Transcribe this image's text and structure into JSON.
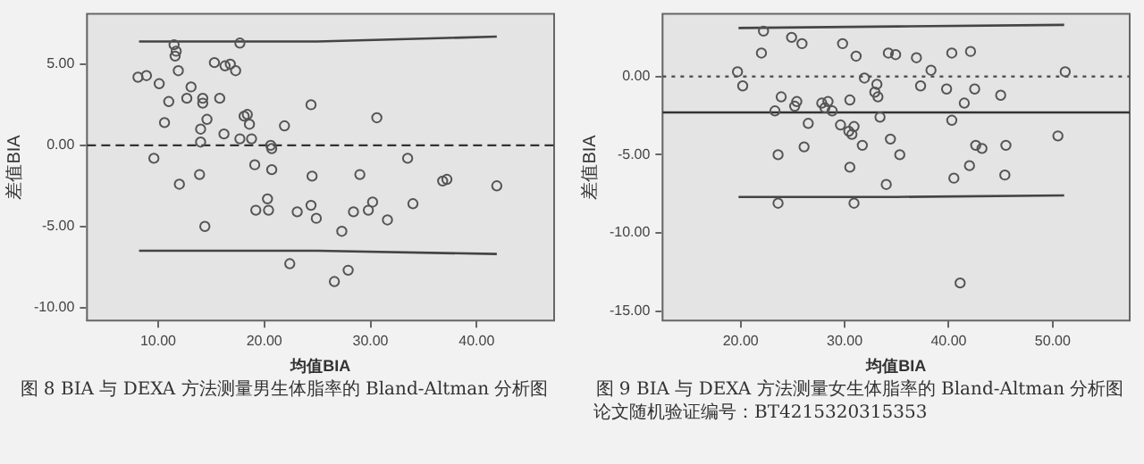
{
  "chart_data": [
    {
      "type": "scatter",
      "title": "图 8 BIA 与 DEXA 方法测量男生体脂率的 Bland-Altman 分析图",
      "xlabel": "均值BIA",
      "ylabel": "差值BIA",
      "marker": "circle",
      "xlim": [
        3.3,
        47.3
      ],
      "xticks": [
        {
          "value": 10,
          "label": "10.00"
        },
        {
          "value": 20,
          "label": "20.00"
        },
        {
          "value": 30,
          "label": "30.00"
        },
        {
          "value": 40,
          "label": "40.00"
        }
      ],
      "ylim": [
        -10.8,
        8.1
      ],
      "yticks": [
        {
          "value": 5,
          "label": "5.00"
        },
        {
          "value": 0,
          "label": "0.00"
        },
        {
          "value": -5,
          "label": "-5.00"
        },
        {
          "value": -10,
          "label": "-10.00"
        }
      ],
      "ref_lines": [
        {
          "axis": "y",
          "value": 0,
          "color": "#333333",
          "line_style": "dashed"
        }
      ],
      "series": [
        {
          "color": "#555555",
          "x": [
            11.5,
            17.7,
            11.7,
            11.6,
            11.9,
            8.1,
            8.9,
            10.1,
            15.3,
            16.3,
            16.8,
            17.3,
            13.1,
            11.0,
            12.7,
            14.2,
            14.2,
            15.8,
            24.4,
            30.6,
            18.1,
            18.4,
            14.6,
            10.6,
            14.0,
            18.6,
            21.9,
            16.2,
            17.7,
            18.8,
            14.0,
            20.6,
            20.7,
            9.6,
            33.5,
            19.1,
            20.7,
            13.9,
            24.5,
            29.0,
            12.0,
            36.8,
            37.2,
            41.9,
            20.3,
            29.8,
            34.0,
            19.2,
            20.4,
            23.1,
            24.4,
            24.9,
            28.4,
            30.2,
            31.6,
            14.4,
            27.3,
            22.4,
            27.9,
            26.6
          ],
          "values": [
            6.2,
            6.3,
            5.8,
            5.5,
            4.6,
            4.2,
            4.3,
            3.8,
            5.1,
            4.9,
            5.0,
            4.6,
            3.6,
            2.7,
            2.9,
            2.9,
            2.6,
            2.9,
            2.5,
            1.7,
            1.8,
            1.9,
            1.6,
            1.4,
            1.0,
            1.3,
            1.2,
            0.7,
            0.4,
            0.4,
            0.2,
            0.0,
            -0.2,
            -0.8,
            -0.8,
            -1.2,
            -1.5,
            -1.8,
            -1.9,
            -1.8,
            -2.4,
            -2.2,
            -2.1,
            -2.5,
            -3.3,
            -4.0,
            -3.6,
            -4.0,
            -4.0,
            -4.1,
            -3.7,
            -4.5,
            -4.1,
            -3.5,
            -4.6,
            -5.0,
            -5.3,
            -7.3,
            -7.7,
            -8.4
          ]
        },
        {
          "type": "line",
          "marker": "none",
          "color": "#444444",
          "x": [
            8.2,
            25,
            41.9
          ],
          "values": [
            6.4,
            6.4,
            6.7
          ]
        },
        {
          "type": "line",
          "marker": "none",
          "color": "#444444",
          "x": [
            8.2,
            25,
            41.9
          ],
          "values": [
            -6.5,
            -6.5,
            -6.7
          ]
        }
      ]
    },
    {
      "type": "scatter",
      "title": "图 9 BIA 与 DEXA 方法测量女生体脂率的 Bland-Altman 分析图",
      "annotations": [
        "论文随机验证编号：BT4215320315353"
      ],
      "xlabel": "均值BIA",
      "ylabel": "差值BIA",
      "marker": "circle",
      "xlim": [
        12.5,
        57.4
      ],
      "xticks": [
        {
          "value": 20,
          "label": "20.00"
        },
        {
          "value": 30,
          "label": "30.00"
        },
        {
          "value": 40,
          "label": "40.00"
        },
        {
          "value": 50,
          "label": "50.00"
        }
      ],
      "ylim": [
        -15.6,
        4.0
      ],
      "yticks": [
        {
          "value": 0,
          "label": "0.00"
        },
        {
          "value": -5,
          "label": "-5.00"
        },
        {
          "value": -10,
          "label": "-10.00"
        },
        {
          "value": -15,
          "label": "-15.00"
        }
      ],
      "ref_lines": [
        {
          "axis": "y",
          "value": 0,
          "color": "#555555",
          "line_style": "dotted"
        },
        {
          "axis": "y",
          "value": -2.3,
          "color": "#333333",
          "line_style": "solid"
        }
      ],
      "series": [
        {
          "color": "#555555",
          "x": [
            22.2,
            24.9,
            25.9,
            29.8,
            22.0,
            31.1,
            34.2,
            34.9,
            36.9,
            40.3,
            42.1,
            38.3,
            19.7,
            51.2,
            31.9,
            20.2,
            33.1,
            37.3,
            39.8,
            42.5,
            32.9,
            33.2,
            23.9,
            25.4,
            25.2,
            27.8,
            28.4,
            28.1,
            30.5,
            41.5,
            45.0,
            23.3,
            28.8,
            33.4,
            40.3,
            26.5,
            29.6,
            30.9,
            30.4,
            30.7,
            34.4,
            50.5,
            26.1,
            31.7,
            42.6,
            43.2,
            45.5,
            23.6,
            35.3,
            30.5,
            42.0,
            40.5,
            45.4,
            34.0,
            23.6,
            30.9,
            41.1
          ],
          "values": [
            2.9,
            2.5,
            2.1,
            2.1,
            1.5,
            1.3,
            1.5,
            1.4,
            1.2,
            1.5,
            1.6,
            0.4,
            0.3,
            0.3,
            -0.1,
            -0.6,
            -0.5,
            -0.6,
            -0.8,
            -0.8,
            -1.0,
            -1.3,
            -1.3,
            -1.6,
            -1.9,
            -1.7,
            -1.6,
            -2.0,
            -1.5,
            -1.7,
            -1.2,
            -2.2,
            -2.2,
            -2.6,
            -2.8,
            -3.0,
            -3.1,
            -3.2,
            -3.5,
            -3.7,
            -4.0,
            -3.8,
            -4.5,
            -4.4,
            -4.4,
            -4.6,
            -4.4,
            -5.0,
            -5.0,
            -5.8,
            -5.7,
            -6.5,
            -6.3,
            -6.9,
            -8.1,
            -8.1,
            -13.2
          ]
        },
        {
          "type": "line",
          "marker": "none",
          "color": "#444444",
          "x": [
            19.8,
            35,
            51.1
          ],
          "values": [
            3.1,
            3.2,
            3.3
          ]
        },
        {
          "type": "line",
          "marker": "none",
          "color": "#444444",
          "x": [
            19.8,
            35,
            51.1
          ],
          "values": [
            -7.7,
            -7.7,
            -7.6
          ]
        }
      ]
    }
  ]
}
